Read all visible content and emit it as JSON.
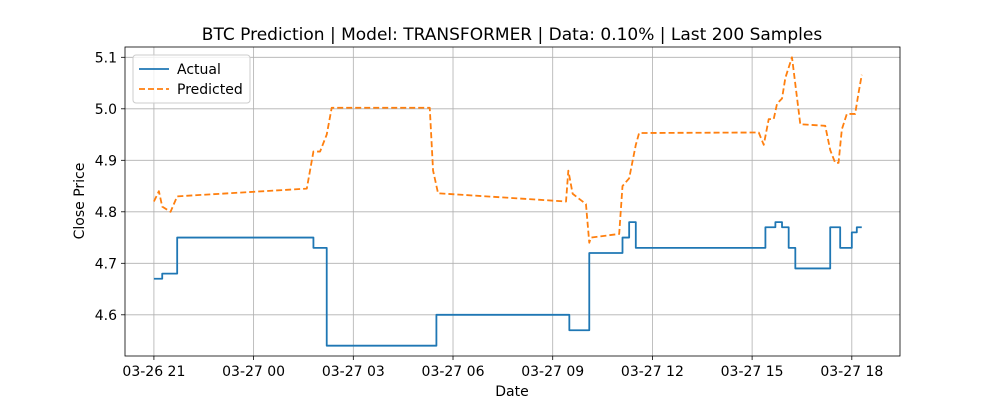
{
  "chart_data": {
    "type": "line",
    "title": "BTC Prediction | Model: TRANSFORMER | Data: 0.10% | Last 200 Samples",
    "xlabel": "Date",
    "ylabel": "Close Price",
    "x_ticks": [
      {
        "t": 0,
        "label": "03-26 21"
      },
      {
        "t": 3,
        "label": "03-27 00"
      },
      {
        "t": 6,
        "label": "03-27 03"
      },
      {
        "t": 9,
        "label": "03-27 06"
      },
      {
        "t": 12,
        "label": "03-27 09"
      },
      {
        "t": 15,
        "label": "03-27 12"
      },
      {
        "t": 18,
        "label": "03-27 15"
      },
      {
        "t": 21,
        "label": "03-27 18"
      }
    ],
    "y_ticks": [
      4.6,
      4.7,
      4.8,
      4.9,
      5.0,
      5.1
    ],
    "xlim": [
      -0.87,
      22.45
    ],
    "ylim": [
      4.52,
      5.12
    ],
    "grid": true,
    "legend_position": "top-left",
    "series": [
      {
        "name": "Actual",
        "color": "#1f77b4",
        "style": "solid",
        "interpolation": "step",
        "points": [
          [
            0.0,
            4.67
          ],
          [
            0.25,
            4.67
          ],
          [
            0.25,
            4.68
          ],
          [
            0.7,
            4.68
          ],
          [
            0.7,
            4.75
          ],
          [
            4.8,
            4.75
          ],
          [
            4.8,
            4.73
          ],
          [
            5.2,
            4.73
          ],
          [
            5.2,
            4.54
          ],
          [
            8.5,
            4.54
          ],
          [
            8.5,
            4.6
          ],
          [
            12.5,
            4.6
          ],
          [
            12.5,
            4.57
          ],
          [
            13.1,
            4.57
          ],
          [
            13.1,
            4.72
          ],
          [
            14.1,
            4.72
          ],
          [
            14.1,
            4.75
          ],
          [
            14.3,
            4.75
          ],
          [
            14.3,
            4.78
          ],
          [
            14.5,
            4.78
          ],
          [
            14.5,
            4.73
          ],
          [
            18.4,
            4.73
          ],
          [
            18.4,
            4.77
          ],
          [
            18.7,
            4.77
          ],
          [
            18.7,
            4.78
          ],
          [
            18.9,
            4.78
          ],
          [
            18.9,
            4.77
          ],
          [
            19.1,
            4.77
          ],
          [
            19.1,
            4.73
          ],
          [
            19.3,
            4.73
          ],
          [
            19.3,
            4.69
          ],
          [
            20.35,
            4.69
          ],
          [
            20.35,
            4.77
          ],
          [
            20.65,
            4.77
          ],
          [
            20.65,
            4.73
          ],
          [
            21.0,
            4.73
          ],
          [
            21.0,
            4.76
          ],
          [
            21.15,
            4.76
          ],
          [
            21.15,
            4.77
          ],
          [
            21.3,
            4.77
          ]
        ]
      },
      {
        "name": "Predicted",
        "color": "#ff7f0e",
        "style": "dashed",
        "interpolation": "linear",
        "points": [
          [
            0.0,
            4.82
          ],
          [
            0.15,
            4.84
          ],
          [
            0.25,
            4.81
          ],
          [
            0.5,
            4.8
          ],
          [
            0.7,
            4.83
          ],
          [
            4.6,
            4.845
          ],
          [
            4.8,
            4.917
          ],
          [
            5.0,
            4.917
          ],
          [
            5.2,
            4.95
          ],
          [
            5.35,
            5.002
          ],
          [
            8.3,
            5.002
          ],
          [
            8.4,
            4.88
          ],
          [
            8.55,
            4.836
          ],
          [
            12.4,
            4.82
          ],
          [
            12.47,
            4.88
          ],
          [
            12.6,
            4.835
          ],
          [
            13.0,
            4.815
          ],
          [
            13.1,
            4.74
          ],
          [
            13.15,
            4.75
          ],
          [
            14.0,
            4.757
          ],
          [
            14.1,
            4.85
          ],
          [
            14.3,
            4.865
          ],
          [
            14.5,
            4.93
          ],
          [
            14.6,
            4.953
          ],
          [
            18.2,
            4.954
          ],
          [
            18.35,
            4.93
          ],
          [
            18.5,
            4.98
          ],
          [
            18.65,
            4.98
          ],
          [
            18.75,
            5.01
          ],
          [
            18.9,
            5.02
          ],
          [
            19.0,
            5.06
          ],
          [
            19.2,
            5.1
          ],
          [
            19.45,
            4.97
          ],
          [
            20.2,
            4.967
          ],
          [
            20.35,
            4.92
          ],
          [
            20.5,
            4.895
          ],
          [
            20.6,
            4.895
          ],
          [
            20.7,
            4.96
          ],
          [
            20.85,
            4.99
          ],
          [
            21.1,
            4.99
          ],
          [
            21.2,
            5.03
          ],
          [
            21.3,
            5.066
          ]
        ]
      }
    ]
  }
}
